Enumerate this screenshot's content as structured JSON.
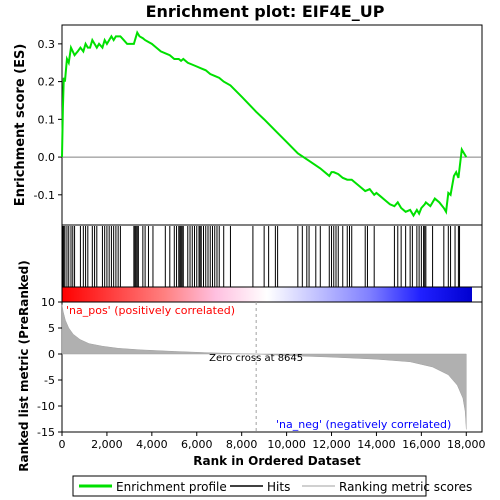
{
  "chart_data": {
    "type": "line",
    "title": "Enrichment plot: EIF4E_UP",
    "x_axis": {
      "label": "Rank in Ordered Dataset",
      "range": [
        0,
        18700
      ],
      "ticks": [
        0,
        2000,
        4000,
        6000,
        8000,
        10000,
        12000,
        14000,
        16000,
        18000
      ],
      "tick_labels": [
        "0",
        "2,000",
        "4,000",
        "6,000",
        "8,000",
        "10,000",
        "12,000",
        "14,000",
        "16,000",
        "18,000"
      ]
    },
    "es_panel": {
      "ylabel": "Enrichment score (ES)",
      "ylim": [
        -0.18,
        0.35
      ],
      "yticks": [
        -0.1,
        0.0,
        0.1,
        0.2,
        0.3
      ],
      "ytick_labels": [
        "-0.1",
        "0.0",
        "0.1",
        "0.2",
        "0.3"
      ],
      "series": [
        {
          "name": "Enrichment profile",
          "color": "#00e000",
          "x": [
            0,
            40,
            80,
            130,
            220,
            300,
            400,
            480,
            560,
            700,
            820,
            950,
            1050,
            1150,
            1250,
            1350,
            1450,
            1550,
            1650,
            1800,
            1900,
            2000,
            2100,
            2200,
            2300,
            2400,
            2500,
            2600,
            2750,
            2900,
            3050,
            3200,
            3300,
            3350,
            3450,
            3600,
            3700,
            3850,
            4000,
            4200,
            4400,
            4600,
            4800,
            5000,
            5200,
            5300,
            5400,
            5600,
            5800,
            6000,
            6200,
            6400,
            6600,
            6800,
            7000,
            7200,
            7500,
            8000,
            8645,
            9000,
            9500,
            10000,
            10500,
            11000,
            11500,
            11900,
            12000,
            12100,
            12300,
            12500,
            12700,
            12900,
            13100,
            13300,
            13500,
            13700,
            13900,
            14000,
            14200,
            14400,
            14600,
            14800,
            14950,
            15100,
            15300,
            15500,
            15650,
            15800,
            15900,
            16000,
            16150,
            16200,
            16400,
            16600,
            16800,
            17000,
            17100,
            17200,
            17300,
            17450,
            17550,
            17650,
            17800,
            18000
          ],
          "y": [
            0.0,
            0.13,
            0.21,
            0.2,
            0.26,
            0.25,
            0.29,
            0.28,
            0.27,
            0.28,
            0.29,
            0.28,
            0.3,
            0.29,
            0.29,
            0.31,
            0.3,
            0.29,
            0.3,
            0.29,
            0.31,
            0.3,
            0.31,
            0.32,
            0.31,
            0.32,
            0.32,
            0.32,
            0.31,
            0.3,
            0.3,
            0.3,
            0.32,
            0.33,
            0.32,
            0.315,
            0.31,
            0.305,
            0.3,
            0.29,
            0.28,
            0.275,
            0.27,
            0.26,
            0.26,
            0.255,
            0.26,
            0.25,
            0.245,
            0.24,
            0.235,
            0.23,
            0.22,
            0.215,
            0.21,
            0.2,
            0.19,
            0.16,
            0.12,
            0.1,
            0.07,
            0.04,
            0.01,
            -0.01,
            -0.03,
            -0.05,
            -0.04,
            -0.04,
            -0.045,
            -0.055,
            -0.06,
            -0.06,
            -0.07,
            -0.08,
            -0.09,
            -0.085,
            -0.1,
            -0.095,
            -0.105,
            -0.115,
            -0.125,
            -0.13,
            -0.12,
            -0.135,
            -0.145,
            -0.14,
            -0.155,
            -0.14,
            -0.15,
            -0.135,
            -0.125,
            -0.12,
            -0.13,
            -0.11,
            -0.12,
            -0.135,
            -0.145,
            -0.095,
            -0.1,
            -0.05,
            -0.04,
            -0.055,
            0.02,
            0.0
          ]
        }
      ]
    },
    "hits_panel": {
      "hit_ranks": [
        40,
        80,
        130,
        220,
        300,
        400,
        480,
        560,
        820,
        950,
        1050,
        1150,
        1350,
        1450,
        1550,
        1800,
        1900,
        2000,
        2100,
        2200,
        2300,
        2400,
        2500,
        2600,
        3200,
        3250,
        3300,
        3350,
        3400,
        3600,
        3700,
        3850,
        4050,
        4600,
        4800,
        5000,
        5100,
        5200,
        5250,
        5300,
        5350,
        5400,
        5600,
        5700,
        5800,
        5900,
        6000,
        6100,
        6150,
        6200,
        6300,
        6400,
        6500,
        6600,
        6700,
        6800,
        6900,
        7000,
        7200,
        7500,
        8500,
        9000,
        9200,
        9500,
        9600,
        10500,
        10700,
        10900,
        11000,
        11300,
        11500,
        11900,
        12000,
        12100,
        12200,
        12300,
        12500,
        12700,
        12800,
        12900,
        13500,
        13600,
        13900,
        14800,
        14950,
        15100,
        15300,
        15500,
        15600,
        15800,
        15900,
        16000,
        16100,
        16150,
        16200,
        16500,
        17000,
        17200,
        17300,
        17500,
        17650,
        17700
      ]
    },
    "colorbar": {
      "gradient_colors": [
        "#ff0000",
        "#ff4040",
        "#ff8080",
        "#ffc0e0",
        "#ffffff",
        "#c0c0ff",
        "#8080ff",
        "#2020ff",
        "#0000d0"
      ]
    },
    "metric_panel": {
      "ylabel": "Ranked list metric (PreRanked)",
      "ylim": [
        -15,
        10
      ],
      "yticks": [
        -15,
        -10,
        -5,
        0,
        5,
        10
      ],
      "ytick_labels": [
        "-15",
        "-10",
        "-5",
        "0",
        "5",
        "10"
      ],
      "zero_cross": 8645,
      "zero_cross_label": "Zero cross at 8645",
      "pos_label": "'na_pos' (positively correlated)",
      "neg_label": "'na_neg' (negatively correlated)",
      "pos_color": "#ff0000",
      "neg_color": "#0000ff",
      "curve": {
        "x": [
          0,
          50,
          150,
          300,
          500,
          800,
          1200,
          1800,
          2500,
          3500,
          5000,
          6500,
          8000,
          8645,
          10000,
          12000,
          14000,
          15500,
          16500,
          17200,
          17600,
          17850,
          17950,
          18000
        ],
        "y": [
          9.5,
          8.2,
          6.5,
          5.0,
          3.8,
          2.8,
          2.0,
          1.5,
          1.1,
          0.8,
          0.5,
          0.25,
          0.05,
          0.0,
          -0.3,
          -0.6,
          -1.0,
          -1.5,
          -2.5,
          -4.0,
          -6.0,
          -8.5,
          -11.0,
          -14.5
        ]
      }
    },
    "legend": {
      "placement": "bottom",
      "items": [
        {
          "label": "Enrichment profile",
          "color": "#00e000"
        },
        {
          "label": "Hits",
          "color": "#000000"
        },
        {
          "label": "Ranking metric scores",
          "color": "#c0c0c0"
        }
      ]
    }
  }
}
